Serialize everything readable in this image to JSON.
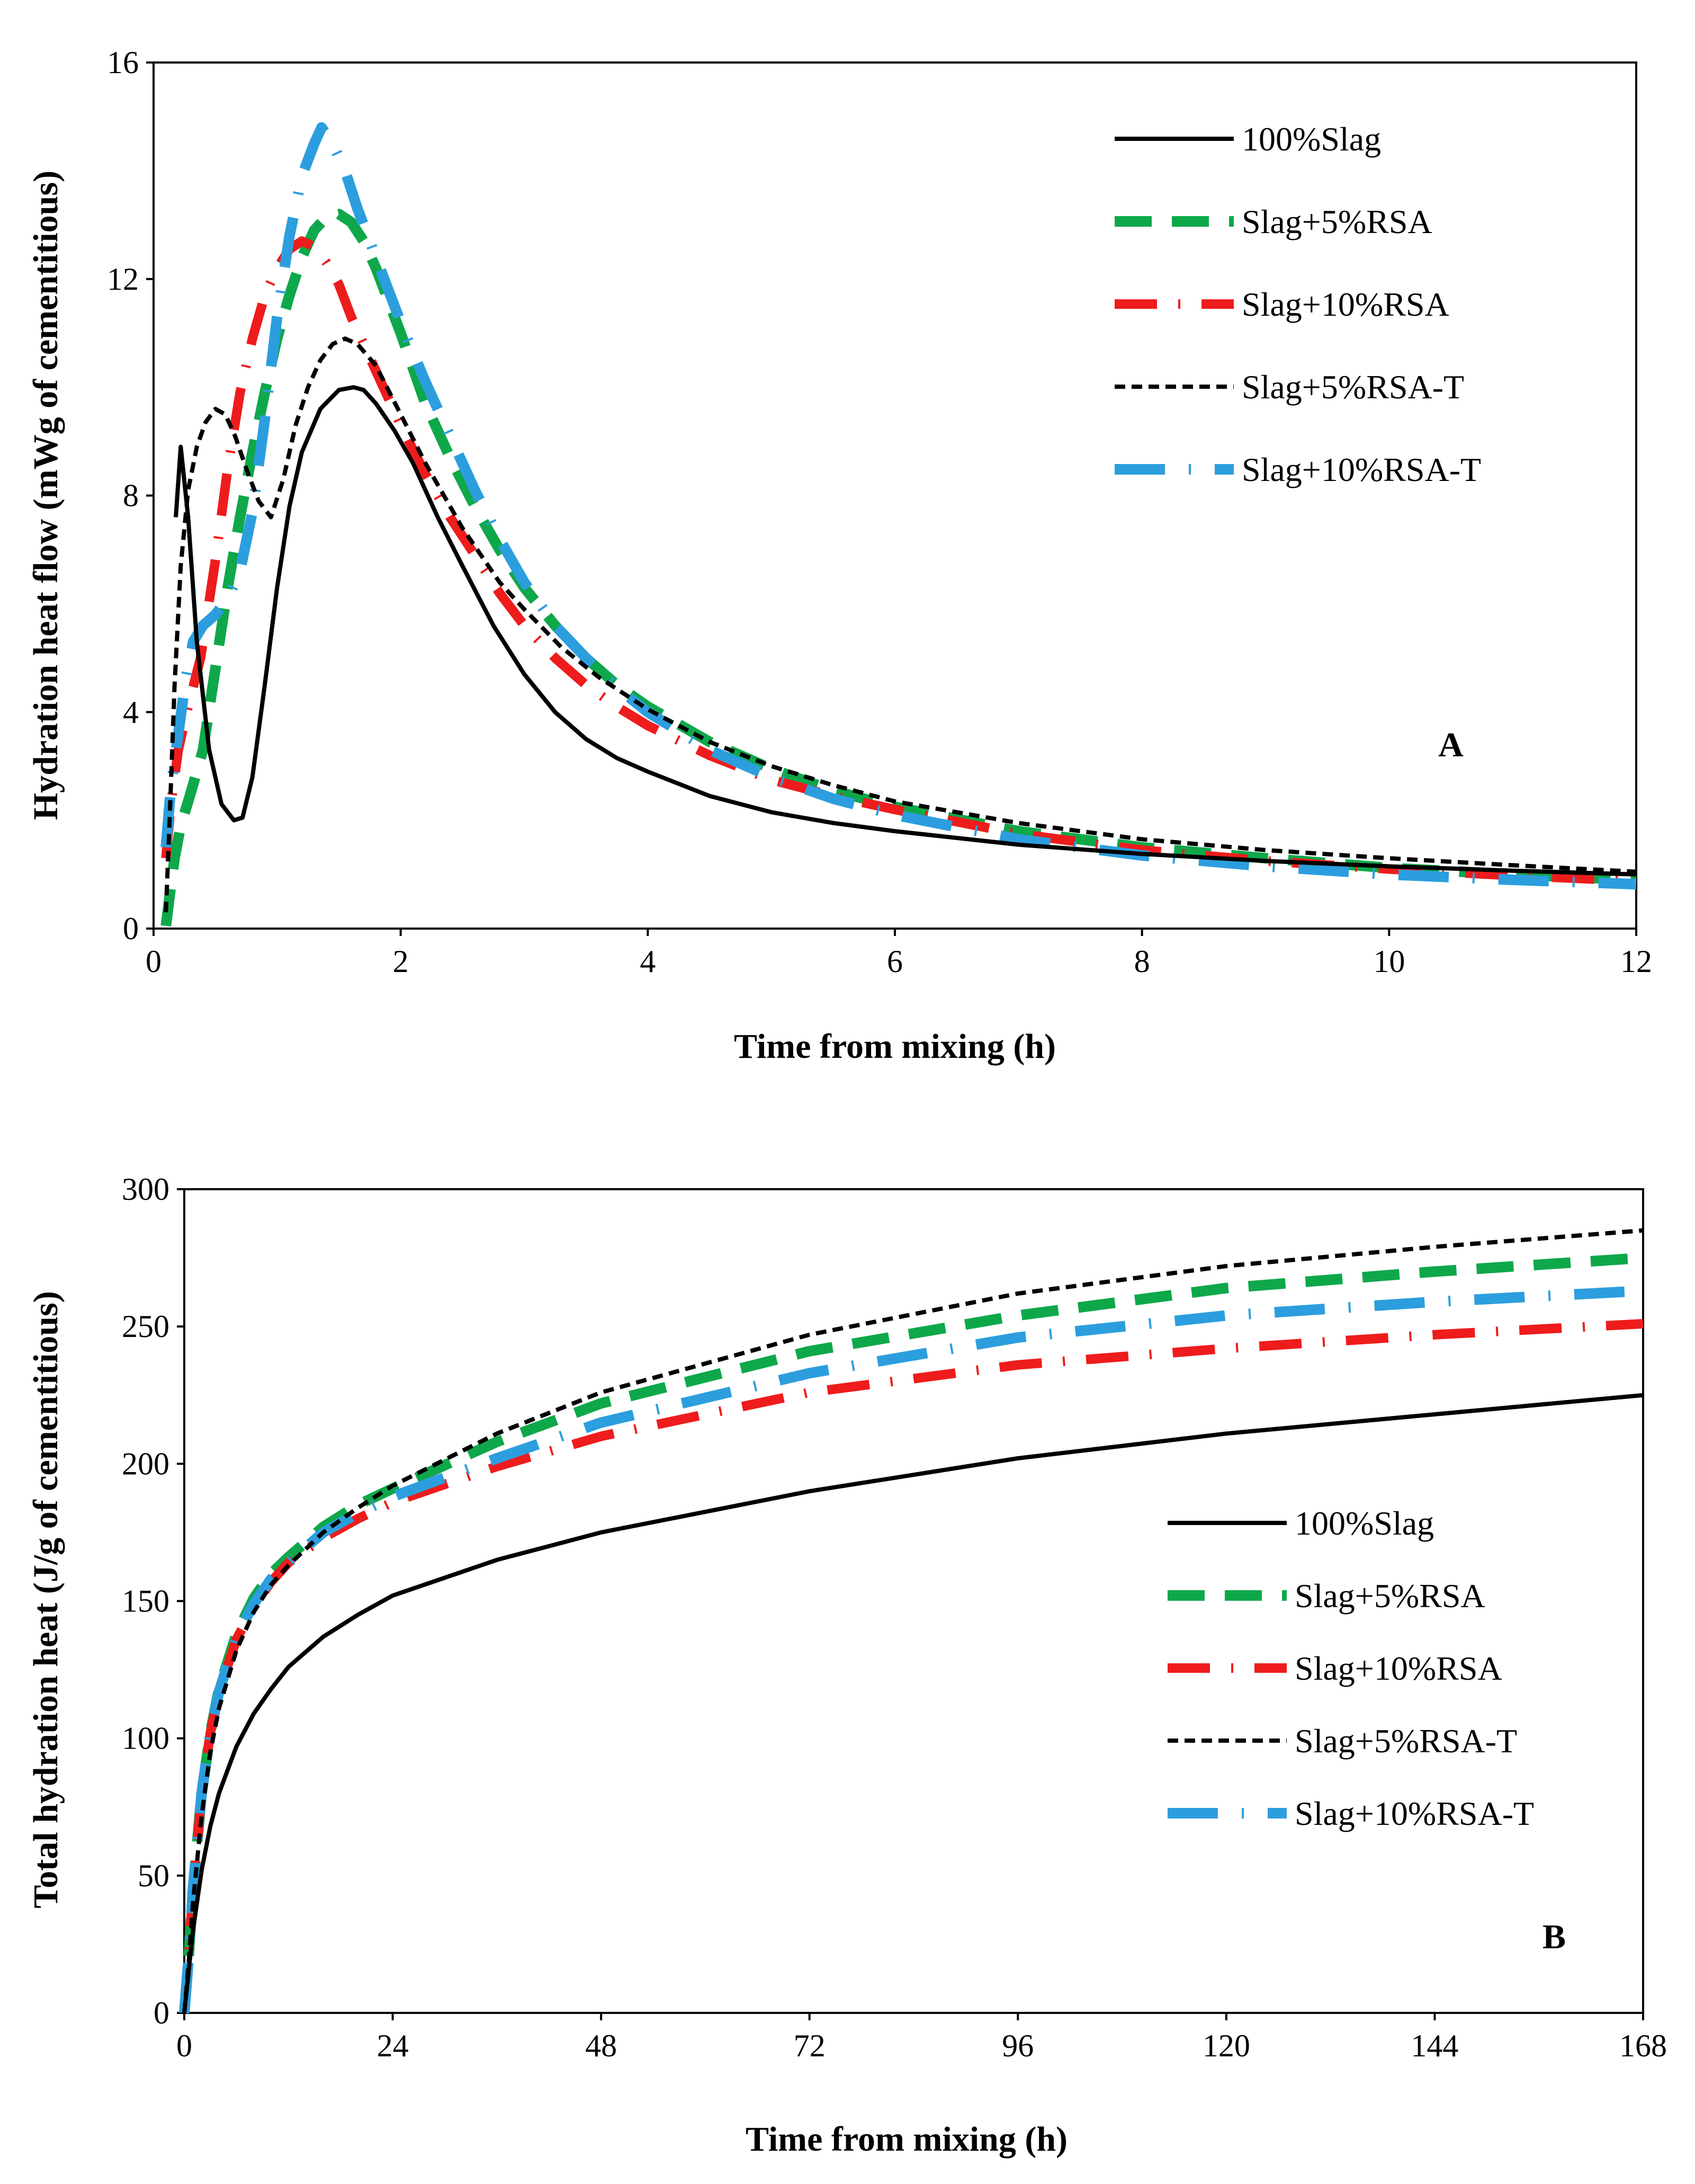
{
  "colors": {
    "slag": "#000000",
    "rsa5": "#0ea84a",
    "rsa10": "#ee1c1c",
    "rsa5t": "#000000",
    "rsa10t": "#2c9ede"
  },
  "chart_data": [
    {
      "type": "line",
      "panel_label": "A",
      "xlabel": "Time from mixing (h)",
      "ylabel": "Hydration heat flow (mWg of cementitious)",
      "xlim": [
        0,
        12
      ],
      "ylim": [
        0,
        16
      ],
      "xticks": [
        0,
        2,
        4,
        6,
        8,
        10,
        12
      ],
      "yticks": [
        0,
        4,
        8,
        12,
        16
      ],
      "legend_position": "top-right",
      "series": [
        {
          "name": "100%Slag",
          "style": "solid",
          "color_key": "slag",
          "x": [
            0.18,
            0.22,
            0.28,
            0.35,
            0.45,
            0.55,
            0.65,
            0.72,
            0.8,
            0.9,
            1.0,
            1.1,
            1.2,
            1.35,
            1.5,
            1.62,
            1.7,
            1.8,
            1.95,
            2.1,
            2.3,
            2.5,
            2.75,
            3.0,
            3.25,
            3.5,
            3.75,
            4.0,
            4.5,
            5.0,
            5.5,
            6.0,
            7.0,
            8.0,
            9.0,
            10.0,
            11.0,
            12.0
          ],
          "y": [
            7.6,
            8.9,
            7.6,
            5.3,
            3.3,
            2.3,
            2.0,
            2.05,
            2.8,
            4.5,
            6.3,
            7.8,
            8.8,
            9.6,
            9.95,
            10.0,
            9.95,
            9.7,
            9.2,
            8.6,
            7.6,
            6.7,
            5.6,
            4.7,
            4.0,
            3.5,
            3.15,
            2.9,
            2.45,
            2.15,
            1.95,
            1.8,
            1.55,
            1.38,
            1.25,
            1.15,
            1.07,
            1.0
          ]
        },
        {
          "name": "Slag+5%RSA",
          "style": "dash",
          "color_key": "rsa5",
          "x": [
            0.1,
            0.13,
            0.17,
            0.22,
            0.3,
            0.4,
            0.5,
            0.6,
            0.7,
            0.8,
            0.9,
            1.0,
            1.1,
            1.2,
            1.3,
            1.4,
            1.5,
            1.6,
            1.7,
            1.8,
            2.0,
            2.2,
            2.4,
            2.6,
            2.8,
            3.0,
            3.25,
            3.5,
            3.75,
            4.0,
            4.5,
            5.0,
            5.5,
            6.0,
            7.0,
            8.0,
            9.0,
            10.0,
            11.0,
            12.0
          ],
          "y": [
            0.05,
            0.6,
            1.3,
            1.9,
            2.5,
            3.3,
            4.8,
            6.3,
            7.6,
            8.8,
            9.9,
            10.9,
            11.7,
            12.4,
            12.9,
            13.15,
            13.2,
            13.05,
            12.7,
            12.2,
            11.0,
            9.7,
            8.7,
            7.8,
            7.0,
            6.3,
            5.6,
            5.0,
            4.5,
            4.1,
            3.45,
            2.95,
            2.55,
            2.25,
            1.8,
            1.5,
            1.3,
            1.12,
            1.0,
            0.9
          ]
        },
        {
          "name": "Slag+10%RSA",
          "style": "longdash-dot",
          "color_key": "rsa10",
          "x": [
            0.1,
            0.14,
            0.2,
            0.28,
            0.38,
            0.5,
            0.6,
            0.7,
            0.8,
            0.9,
            1.0,
            1.1,
            1.2,
            1.3,
            1.4,
            1.5,
            1.6,
            1.7,
            1.8,
            2.0,
            2.2,
            2.4,
            2.6,
            2.8,
            3.0,
            3.25,
            3.5,
            3.75,
            4.0,
            4.5,
            5.0,
            5.5,
            6.0,
            7.0,
            8.0,
            9.0,
            10.0,
            11.0,
            12.0
          ],
          "y": [
            1.3,
            2.3,
            3.3,
            4.1,
            5.0,
            6.8,
            8.5,
            9.9,
            10.9,
            11.7,
            12.2,
            12.55,
            12.7,
            12.6,
            12.3,
            11.9,
            11.3,
            10.8,
            10.3,
            9.3,
            8.4,
            7.6,
            6.9,
            6.2,
            5.6,
            5.0,
            4.5,
            4.1,
            3.75,
            3.2,
            2.75,
            2.45,
            2.2,
            1.75,
            1.45,
            1.25,
            1.1,
            0.98,
            0.88
          ]
        },
        {
          "name": "Slag+5%RSA-T",
          "style": "shortdash",
          "color_key": "rsa5t",
          "x": [
            0.1,
            0.13,
            0.17,
            0.22,
            0.28,
            0.35,
            0.42,
            0.5,
            0.58,
            0.66,
            0.75,
            0.85,
            0.95,
            1.05,
            1.15,
            1.25,
            1.35,
            1.45,
            1.55,
            1.65,
            1.8,
            2.0,
            2.2,
            2.5,
            2.8,
            3.0,
            3.3,
            3.6,
            4.0,
            4.5,
            5.0,
            5.5,
            6.0,
            7.0,
            8.0,
            9.0,
            10.0,
            11.0,
            12.0
          ],
          "y": [
            0.3,
            2.0,
            4.5,
            6.7,
            8.1,
            8.9,
            9.35,
            9.6,
            9.5,
            9.1,
            8.5,
            7.9,
            7.6,
            8.3,
            9.3,
            10.0,
            10.5,
            10.8,
            10.9,
            10.8,
            10.4,
            9.5,
            8.6,
            7.4,
            6.4,
            5.9,
            5.2,
            4.65,
            4.05,
            3.45,
            3.0,
            2.65,
            2.35,
            1.95,
            1.65,
            1.45,
            1.3,
            1.17,
            1.05
          ]
        },
        {
          "name": "Slag+10%RSA-T",
          "style": "dash-dot",
          "color_key": "rsa10t",
          "x": [
            0.1,
            0.14,
            0.2,
            0.26,
            0.32,
            0.4,
            0.5,
            0.6,
            0.7,
            0.8,
            0.9,
            1.0,
            1.1,
            1.2,
            1.3,
            1.36,
            1.45,
            1.55,
            1.65,
            1.8,
            2.0,
            2.2,
            2.4,
            2.6,
            2.8,
            3.0,
            3.25,
            3.5,
            3.75,
            4.0,
            4.5,
            5.0,
            5.5,
            6.0,
            7.0,
            8.0,
            9.0,
            10.0,
            11.0,
            12.0
          ],
          "y": [
            1.5,
            2.6,
            3.6,
            4.6,
            5.3,
            5.6,
            5.8,
            6.1,
            6.6,
            7.7,
            9.4,
            11.3,
            12.8,
            13.9,
            14.5,
            14.8,
            14.5,
            14.0,
            13.3,
            12.4,
            11.2,
            10.1,
            9.1,
            8.1,
            7.2,
            6.4,
            5.6,
            5.0,
            4.45,
            4.0,
            3.3,
            2.8,
            2.4,
            2.1,
            1.65,
            1.35,
            1.15,
            1.0,
            0.9,
            0.82
          ]
        }
      ]
    },
    {
      "type": "line",
      "panel_label": "B",
      "xlabel": "Time from mixing (h)",
      "ylabel": "Total hydration heat (J/g of cementitious)",
      "xlim": [
        0,
        168
      ],
      "ylim": [
        0,
        300
      ],
      "xticks": [
        0,
        24,
        48,
        72,
        96,
        120,
        144,
        168
      ],
      "yticks": [
        0,
        50,
        100,
        150,
        200,
        250,
        300
      ],
      "legend_position": "center-right",
      "series": [
        {
          "name": "100%Slag",
          "style": "solid",
          "color_key": "slag",
          "x": [
            0,
            0.5,
            1,
            2,
            3,
            4,
            6,
            8,
            10,
            12,
            16,
            20,
            24,
            36,
            48,
            72,
            96,
            120,
            144,
            168
          ],
          "y": [
            0,
            15,
            30,
            52,
            68,
            80,
            97,
            109,
            118,
            126,
            137,
            145,
            152,
            165,
            175,
            190,
            202,
            211,
            218,
            225
          ]
        },
        {
          "name": "Slag+5%RSA",
          "style": "dash",
          "color_key": "rsa5",
          "x": [
            0,
            0.5,
            1,
            2,
            3,
            4,
            6,
            8,
            10,
            12,
            16,
            20,
            24,
            36,
            48,
            72,
            96,
            120,
            144,
            168
          ],
          "y": [
            0,
            20,
            45,
            80,
            102,
            118,
            138,
            151,
            160,
            166,
            177,
            185,
            191,
            208,
            222,
            241,
            254,
            264,
            270,
            275
          ]
        },
        {
          "name": "Slag+10%RSA",
          "style": "longdash-dot",
          "color_key": "rsa10",
          "x": [
            0,
            0.5,
            1,
            2,
            3,
            4,
            6,
            8,
            10,
            12,
            16,
            20,
            24,
            36,
            48,
            72,
            96,
            120,
            144,
            168
          ],
          "y": [
            0,
            20,
            45,
            80,
            102,
            117,
            136,
            148,
            157,
            164,
            173,
            180,
            186,
            199,
            210,
            226,
            236,
            242,
            247,
            251
          ]
        },
        {
          "name": "Slag+5%RSA-T",
          "style": "shortdash",
          "color_key": "rsa5t",
          "x": [
            0,
            0.5,
            1,
            2,
            3,
            4,
            6,
            8,
            10,
            12,
            16,
            20,
            24,
            36,
            48,
            72,
            96,
            120,
            144,
            168
          ],
          "y": [
            0,
            18,
            40,
            72,
            95,
            111,
            132,
            146,
            156,
            163,
            175,
            184,
            192,
            211,
            226,
            247,
            262,
            272,
            279,
            285
          ]
        },
        {
          "name": "Slag+10%RSA-T",
          "style": "dash-dot",
          "color_key": "rsa10t",
          "x": [
            0,
            0.5,
            1,
            2,
            3,
            4,
            6,
            8,
            10,
            12,
            16,
            20,
            24,
            36,
            48,
            72,
            96,
            120,
            144,
            168
          ],
          "y": [
            0,
            20,
            45,
            80,
            102,
            117,
            137,
            149,
            158,
            164,
            175,
            182,
            188,
            202,
            215,
            233,
            246,
            254,
            259,
            263
          ]
        }
      ]
    }
  ]
}
